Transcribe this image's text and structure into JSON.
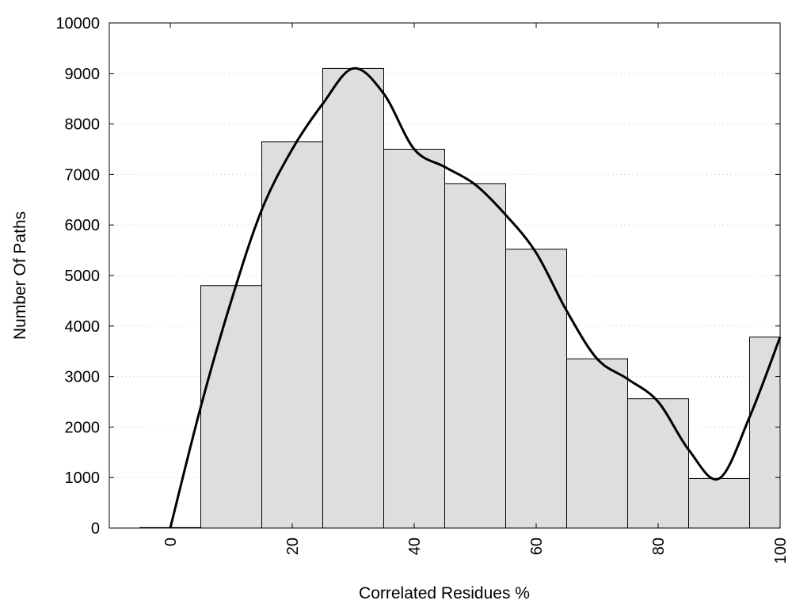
{
  "chart_data": {
    "type": "bar",
    "xlabel": "Correlated Residues %",
    "ylabel": "Number Of Paths",
    "xlim": [
      -10,
      100
    ],
    "ylim": [
      0,
      10000
    ],
    "yticks": [
      0,
      1000,
      2000,
      3000,
      4000,
      5000,
      6000,
      7000,
      8000,
      9000,
      10000
    ],
    "xticks": [
      0,
      20,
      40,
      60,
      80,
      100
    ],
    "grid": "y-dotted",
    "bins": [
      {
        "center": 0,
        "width": 10,
        "value": 10
      },
      {
        "center": 10,
        "width": 10,
        "value": 4800
      },
      {
        "center": 20,
        "width": 10,
        "value": 7650
      },
      {
        "center": 30,
        "width": 10,
        "value": 9100
      },
      {
        "center": 40,
        "width": 10,
        "value": 7500
      },
      {
        "center": 50,
        "width": 10,
        "value": 6820
      },
      {
        "center": 60,
        "width": 10,
        "value": 5520
      },
      {
        "center": 70,
        "width": 10,
        "value": 3350
      },
      {
        "center": 80,
        "width": 10,
        "value": 2560
      },
      {
        "center": 90,
        "width": 10,
        "value": 980
      },
      {
        "center": 100,
        "width": 10,
        "value": 3780
      }
    ],
    "curve": {
      "x": [
        0,
        5,
        10,
        15,
        20,
        25,
        30,
        35,
        40,
        45,
        50,
        55,
        60,
        65,
        70,
        75,
        80,
        85,
        90,
        95,
        100
      ],
      "y": [
        0,
        2400,
        4500,
        6300,
        7500,
        8400,
        9100,
        8600,
        7500,
        7150,
        6800,
        6200,
        5450,
        4300,
        3350,
        2950,
        2500,
        1550,
        980,
        2200,
        3780
      ]
    }
  }
}
